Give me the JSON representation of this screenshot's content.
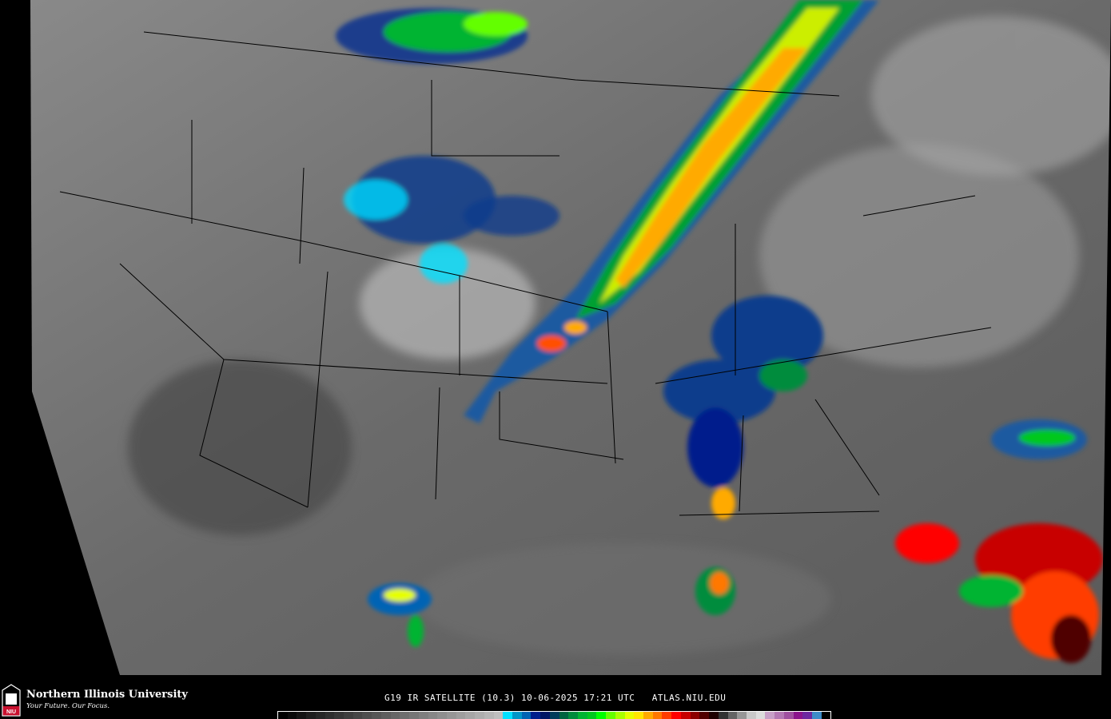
{
  "header": {
    "title": "G19 IR SATELLITE (10.3) 10-06-2025 17:21 UTC   ATLAS.NIU.EDU"
  },
  "branding": {
    "name": "Northern Illinois University",
    "tagline": "Your Future. Our Focus.",
    "logo_text": "NIU",
    "logo_color": "#c8102e"
  },
  "colorbar": {
    "colors": [
      "#000000",
      "#0a0a0a",
      "#141414",
      "#1e1e1e",
      "#262626",
      "#2e2e2e",
      "#363636",
      "#3e3e3e",
      "#464646",
      "#4e4e4e",
      "#565656",
      "#5e5e5e",
      "#666666",
      "#6e6e6e",
      "#767676",
      "#7e7e7e",
      "#868686",
      "#8e8e8e",
      "#969696",
      "#9e9e9e",
      "#a6a6a6",
      "#aeaeae",
      "#b6b6b6",
      "#bebebe",
      "#00e0ff",
      "#0096c8",
      "#0064b4",
      "#001e8c",
      "#001464",
      "#003c5a",
      "#006440",
      "#008c3c",
      "#00b432",
      "#00c81e",
      "#00ff00",
      "#64ff00",
      "#aaff00",
      "#e6ff00",
      "#ffe600",
      "#ffaa00",
      "#ff7800",
      "#ff3c00",
      "#ff0000",
      "#c80000",
      "#8c0000",
      "#500000",
      "#1e0000",
      "#323232",
      "#646464",
      "#969696",
      "#c8c8c8",
      "#dcdcdc",
      "#c8a0c8",
      "#b478b4",
      "#a050a0",
      "#8c148c",
      "#6e28a0",
      "#3c8cc8",
      "#000000"
    ]
  }
}
